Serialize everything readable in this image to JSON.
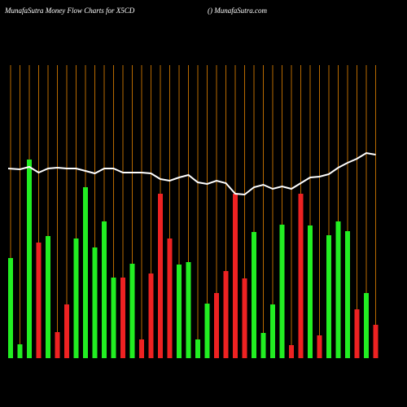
{
  "chart_data": {
    "type": "bar",
    "title": "MunafaSutra  Money Flow  Charts for X5CD",
    "subtitle": "() MunafaSutra.com",
    "ylim": [
      0,
      360
    ],
    "series": [
      {
        "name": "money flow",
        "values": [
          123,
          17,
          244,
          142,
          150,
          32,
          66,
          147,
          210,
          136,
          168,
          99,
          99,
          116,
          23,
          104,
          202,
          147,
          115,
          118,
          23,
          67,
          80,
          107,
          202,
          98,
          155,
          31,
          66,
          164,
          16,
          202,
          163,
          28,
          151,
          168,
          156,
          60,
          80,
          41
        ],
        "colors": [
          "#22ee22",
          "#22ee22",
          "#22ee22",
          "#ee2222",
          "#22ee22",
          "#ee2222",
          "#ee2222",
          "#22ee22",
          "#22ee22",
          "#22ee22",
          "#22ee22",
          "#22ee22",
          "#ee2222",
          "#22ee22",
          "#ee2222",
          "#ee2222",
          "#ee2222",
          "#ee2222",
          "#22ee22",
          "#22ee22",
          "#22ee22",
          "#22ee22",
          "#ee2222",
          "#ee2222",
          "#ee2222",
          "#ee2222",
          "#22ee22",
          "#22ee22",
          "#22ee22",
          "#22ee22",
          "#ee2222",
          "#ee2222",
          "#22ee22",
          "#ee2222",
          "#22ee22",
          "#22ee22",
          "#22ee22",
          "#ee2222",
          "#22ee22",
          "#ee2222"
        ]
      },
      {
        "name": "price",
        "type": "line",
        "color": "#ffffff",
        "values": [
          233,
          232,
          235,
          228,
          233,
          234,
          233,
          233,
          230,
          227,
          233,
          233,
          228,
          228,
          228,
          227,
          220,
          218,
          222,
          225,
          216,
          214,
          218,
          215,
          202,
          201,
          210,
          213,
          208,
          211,
          208,
          215,
          222,
          223,
          226,
          234,
          240,
          245,
          252,
          250
        ]
      }
    ]
  }
}
